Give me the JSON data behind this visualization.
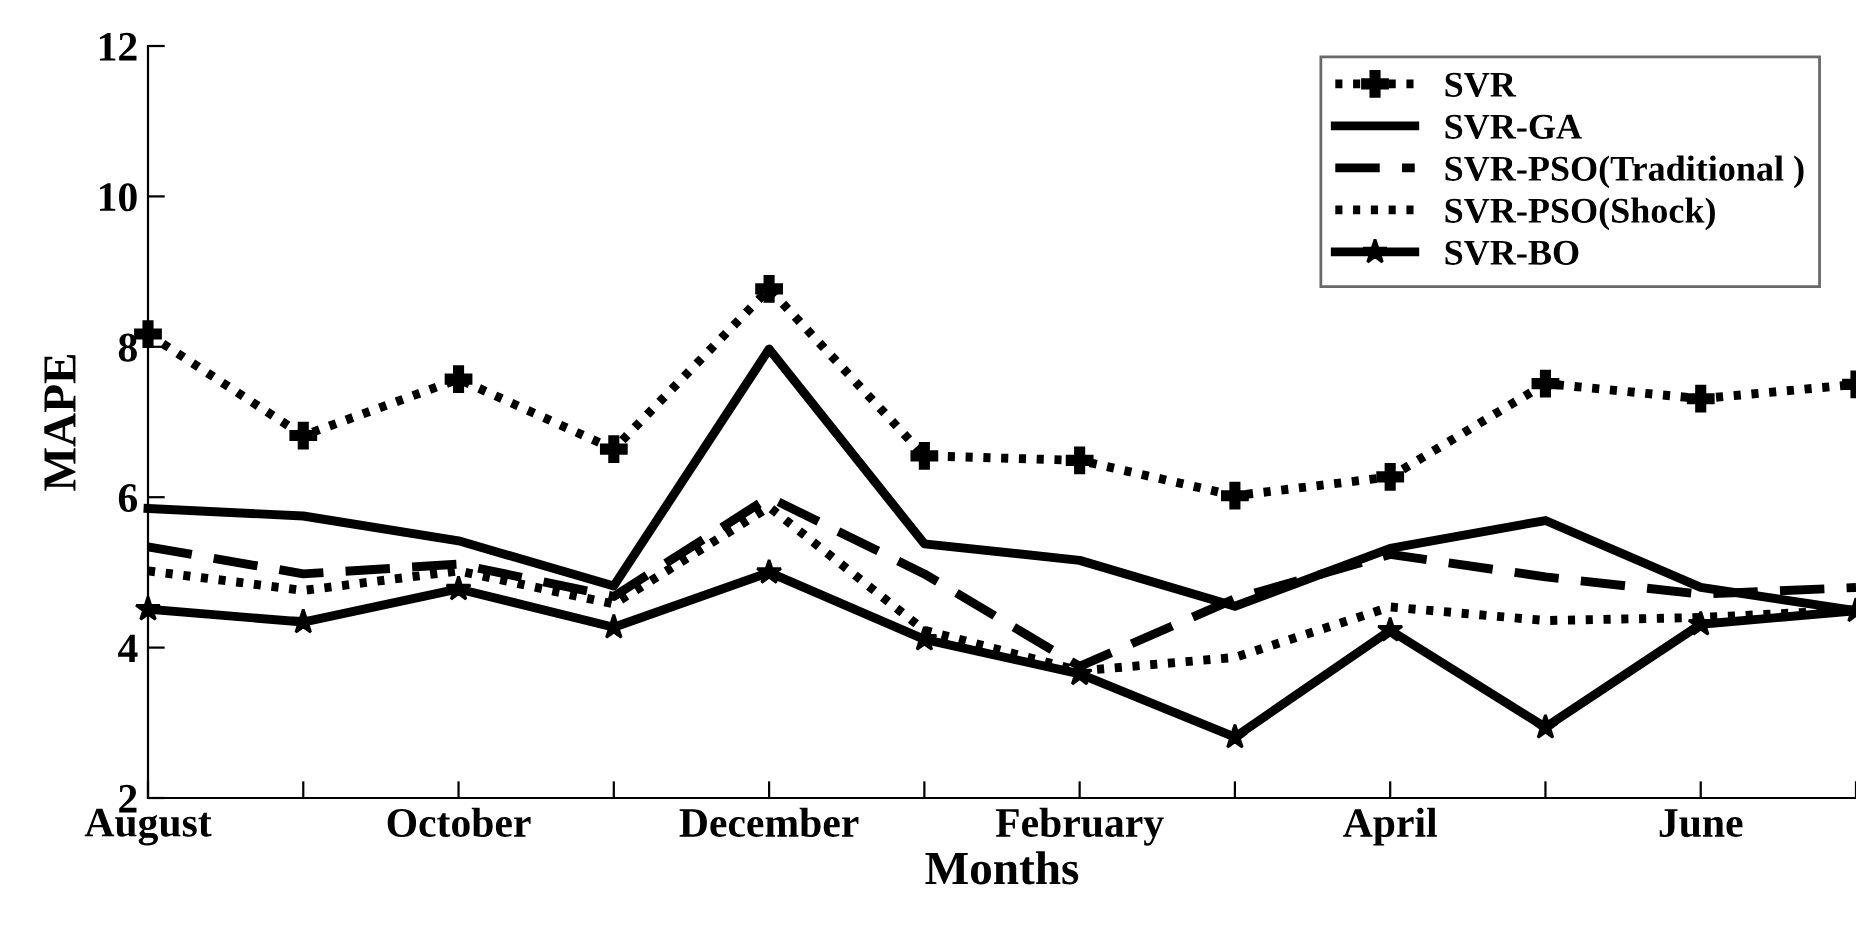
{
  "chart_data": {
    "type": "line",
    "xlabel": "Months",
    "ylabel": "MAPE",
    "categories": [
      "August",
      null,
      "October",
      null,
      "December",
      null,
      "February",
      null,
      "April",
      null,
      "June",
      null
    ],
    "ylim": [
      2,
      12
    ],
    "yticks": [
      2,
      4,
      6,
      8,
      10,
      12
    ],
    "grid": false,
    "legend": "top right",
    "series": [
      {
        "name": "SVR",
        "color": "#000000",
        "line_style": "dotted",
        "marker": "cross",
        "values": [
          8.17,
          6.82,
          7.57,
          6.64,
          8.77,
          6.55,
          6.49,
          6.02,
          6.27,
          7.51,
          7.31,
          7.5
        ]
      },
      {
        "name": "SVR-GA",
        "color": "#000000",
        "line_style": "solid",
        "marker": "none",
        "values": [
          5.85,
          5.75,
          5.42,
          4.82,
          7.97,
          5.38,
          5.16,
          4.55,
          5.32,
          5.69,
          4.8,
          4.49
        ]
      },
      {
        "name": "SVR-PSO(Traditional )",
        "color": "#000000",
        "line_style": "dashed",
        "marker": "none",
        "values": [
          5.34,
          4.98,
          5.11,
          4.68,
          6.0,
          4.98,
          3.75,
          4.65,
          5.24,
          4.94,
          4.71,
          4.8
        ]
      },
      {
        "name": "SVR-PSO(Shock)",
        "color": "#000000",
        "line_style": "dotted",
        "marker": "none",
        "values": [
          5.02,
          4.76,
          5.02,
          4.58,
          5.87,
          4.23,
          3.69,
          3.87,
          4.54,
          4.36,
          4.4,
          4.5
        ]
      },
      {
        "name": "SVR-BO",
        "color": "#000000",
        "line_style": "solid",
        "marker": "star",
        "values": [
          4.51,
          4.34,
          4.78,
          4.27,
          5.0,
          4.11,
          3.65,
          2.81,
          4.23,
          2.94,
          4.31,
          4.49
        ]
      }
    ]
  }
}
